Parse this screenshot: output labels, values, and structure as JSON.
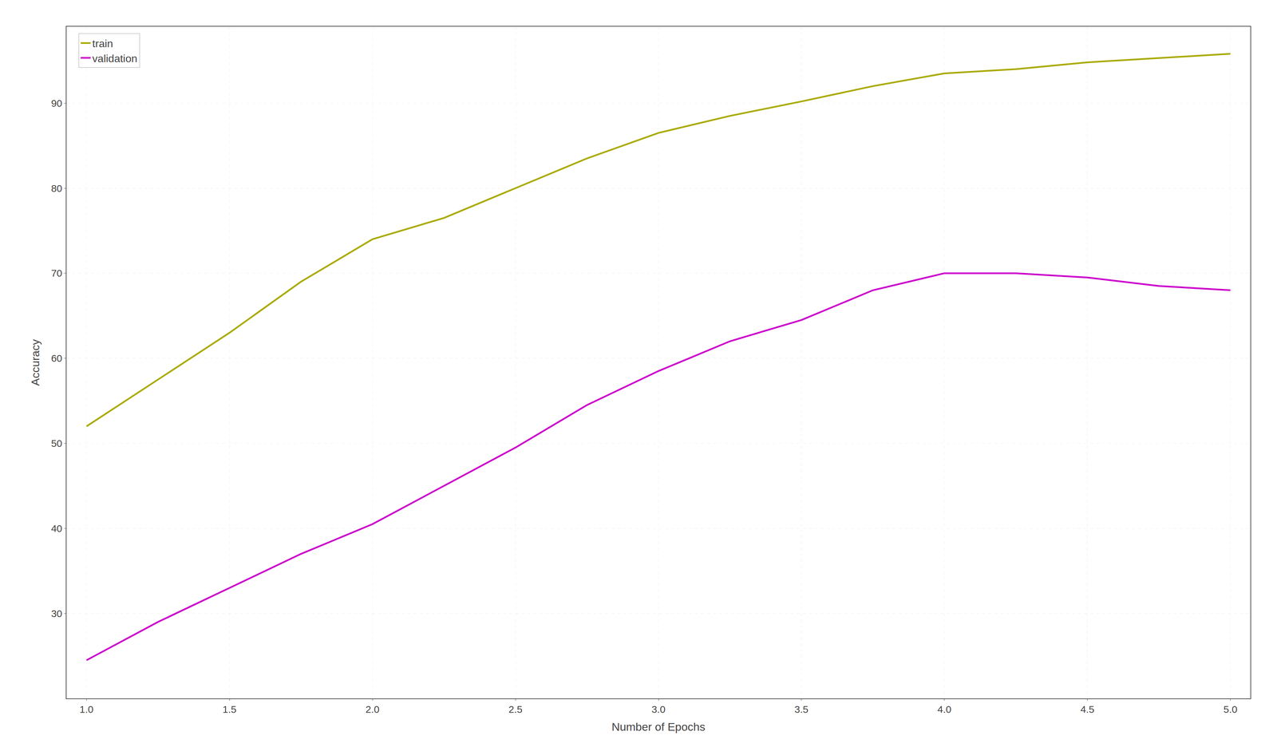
{
  "chart_data": {
    "type": "line",
    "xlabel": "Number of Epochs",
    "ylabel": "Accuracy",
    "x": [
      1.0,
      1.25,
      1.5,
      1.75,
      2.0,
      2.25,
      2.5,
      2.75,
      3.0,
      3.25,
      3.5,
      3.75,
      4.0,
      4.25,
      4.5,
      4.75,
      5.0
    ],
    "series": [
      {
        "name": "train",
        "color": "#aaaa00",
        "values": [
          52.0,
          57.5,
          63.0,
          69.0,
          74.0,
          76.5,
          80.0,
          83.5,
          86.5,
          88.5,
          90.2,
          92.0,
          93.5,
          94.0,
          94.8,
          95.3,
          95.8
        ]
      },
      {
        "name": "validation",
        "color": "#cc00cc",
        "values": [
          24.5,
          29.0,
          33.0,
          37.0,
          40.5,
          45.0,
          49.5,
          54.5,
          58.5,
          62.0,
          64.5,
          68.0,
          70.0,
          70.0,
          69.5,
          68.5,
          68.0
        ]
      }
    ],
    "xlim": [
      0.93,
      5.07
    ],
    "ylim": [
      20,
      99
    ],
    "xticks": [
      {
        "value": 1,
        "label": "1.0"
      },
      1.5,
      {
        "value": 2,
        "label": "2.0"
      },
      2.5,
      {
        "value": 3,
        "label": "3.0"
      },
      3.5,
      {
        "value": 4,
        "label": "4.0"
      },
      4.5,
      {
        "value": 5,
        "label": "5.0"
      }
    ],
    "yticks": [
      30,
      40,
      50,
      60,
      70,
      80,
      90
    ],
    "grid": true,
    "legend": "upper left"
  }
}
